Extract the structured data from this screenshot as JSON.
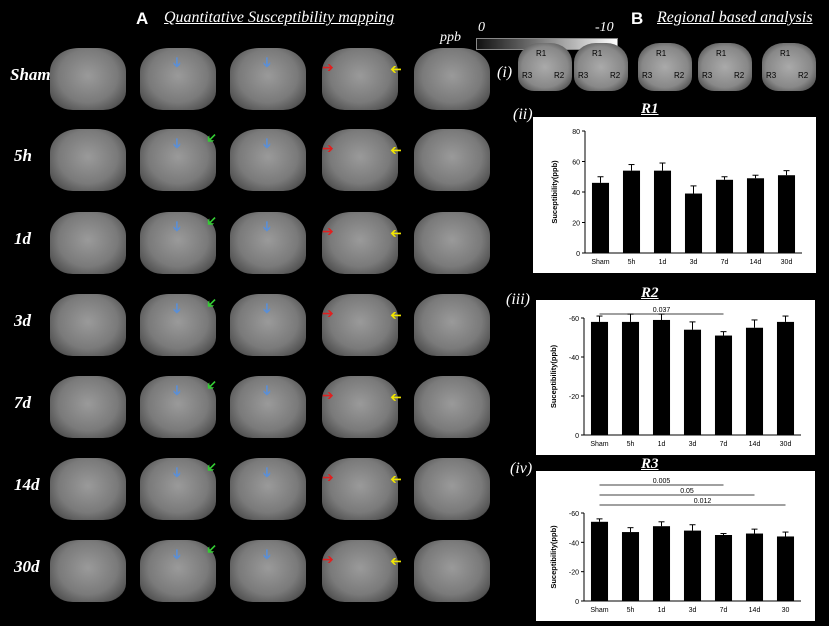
{
  "panel_a": {
    "letter": "A",
    "title": "Quantitative Susceptibility mapping",
    "rows": [
      "Sham",
      "5h",
      "1d",
      "3d",
      "7d",
      "14d",
      "30d"
    ]
  },
  "panel_b": {
    "letter": "B",
    "title": "Regional based analysis",
    "sub_labels": [
      "(i)",
      "(ii)",
      "(iii)",
      "(iv)"
    ],
    "roi_labels": [
      "R1",
      "R2",
      "R3"
    ]
  },
  "scale_bar": {
    "unit": "ppb",
    "min_label": "0",
    "max_label": "-10"
  },
  "colors": {
    "bar": "#000000",
    "arrow_blue": "#5b8fd6",
    "arrow_red": "#e02020",
    "arrow_yellow": "#f2e600",
    "arrow_green": "#33cc33"
  },
  "chart_data": [
    {
      "type": "bar",
      "title": "R1",
      "categories": [
        "Sham",
        "5h",
        "1d",
        "3d",
        "7d",
        "14d",
        "30d"
      ],
      "values": [
        46,
        54,
        54,
        39,
        48,
        49,
        51
      ],
      "errors": [
        4,
        4,
        5,
        5,
        2,
        2,
        3
      ],
      "ylabel": "Suceptibility(ppb)",
      "ylim": [
        0,
        80
      ],
      "yticks": [
        "0",
        "20",
        "40",
        "60",
        "80"
      ],
      "significance": []
    },
    {
      "type": "bar",
      "title": "R2",
      "categories": [
        "Sham",
        "5h",
        "1d",
        "3d",
        "7d",
        "14d",
        "30d"
      ],
      "values": [
        -58,
        -58,
        -59,
        -54,
        -51,
        -55,
        -58
      ],
      "errors": [
        3,
        4,
        3,
        4,
        2,
        4,
        3
      ],
      "ylabel": "Suceptibility(ppb)",
      "ylim": [
        0,
        -60
      ],
      "yticks": [
        "0",
        "-20",
        "-40",
        "-60"
      ],
      "significance": [
        {
          "from": "Sham",
          "to": "7d",
          "label": "0.037"
        }
      ]
    },
    {
      "type": "bar",
      "title": "R3",
      "categories": [
        "Sham",
        "5h",
        "1d",
        "3d",
        "7d",
        "14d",
        "30"
      ],
      "values": [
        -54,
        -47,
        -51,
        -48,
        -45,
        -46,
        -44
      ],
      "errors": [
        2,
        3,
        3,
        4,
        1,
        3,
        3
      ],
      "ylabel": "Suceptibility(ppb)",
      "ylim": [
        0,
        -60
      ],
      "yticks": [
        "0",
        "-20",
        "-40",
        "-60"
      ],
      "significance": [
        {
          "from": "Sham",
          "to": "7d",
          "label": "0.005"
        },
        {
          "from": "Sham",
          "to": "14d",
          "label": "0.05"
        },
        {
          "from": "Sham",
          "to": "30",
          "label": "0.012"
        }
      ]
    }
  ]
}
